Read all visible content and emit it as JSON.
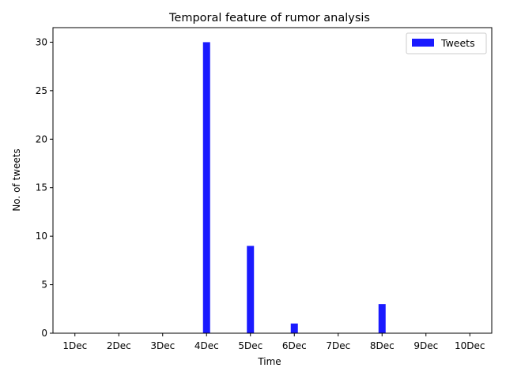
{
  "chart_data": {
    "type": "bar",
    "title": "Temporal feature of rumor analysis",
    "xlabel": "Time",
    "ylabel": "No. of tweets",
    "categories": [
      "1Dec",
      "2Dec",
      "3Dec",
      "4Dec",
      "5Dec",
      "6Dec",
      "7Dec",
      "8Dec",
      "9Dec",
      "10Dec"
    ],
    "series": [
      {
        "name": "Tweets",
        "values": [
          0,
          0,
          0,
          30,
          9,
          1,
          0,
          3,
          0,
          0
        ],
        "color": "#1a1aff"
      }
    ],
    "ylim": [
      0,
      31.5
    ],
    "yticks": [
      0,
      5,
      10,
      15,
      20,
      25,
      30
    ],
    "grid": false,
    "legend": "top-right"
  }
}
